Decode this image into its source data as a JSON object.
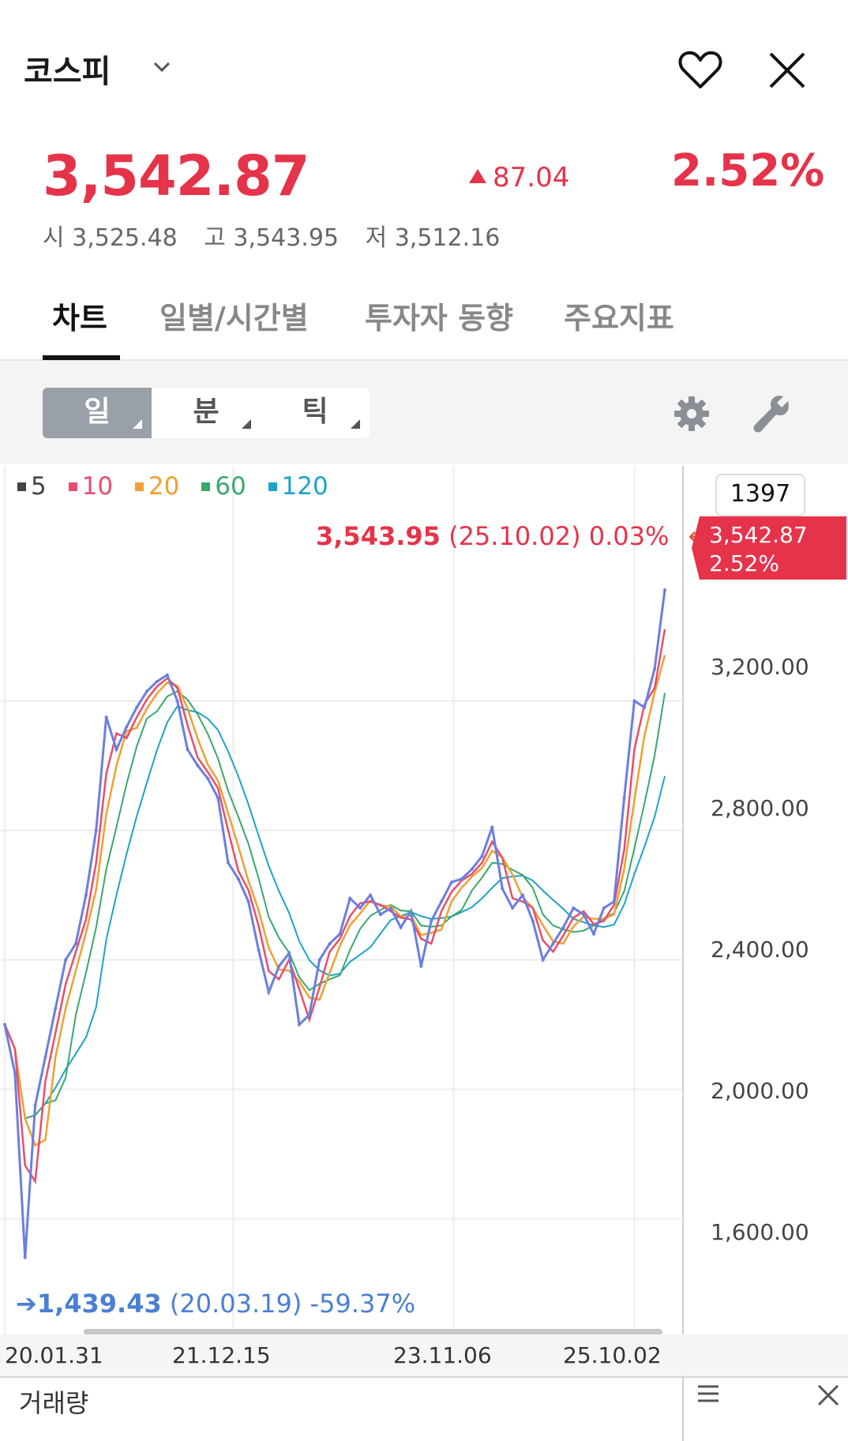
{
  "header": {
    "title": "코스피",
    "favorite_icon": "heart-icon",
    "close_icon": "close-icon",
    "dropdown_icon": "chevron-down-icon"
  },
  "quote": {
    "price": "3,542.87",
    "change": "87.04",
    "change_percent": "2.52%",
    "open": "시 3,525.48",
    "high": "고 3,543.95",
    "low": "저 3,512.16",
    "up_color": "#e5334a"
  },
  "tabs": [
    {
      "label": "차트",
      "active": true
    },
    {
      "label": "일별/시간별",
      "active": false
    },
    {
      "label": "투자자 동향",
      "active": false
    },
    {
      "label": "주요지표",
      "active": false
    }
  ],
  "period_selector": [
    {
      "label": "일",
      "active": true
    },
    {
      "label": "분",
      "active": false
    },
    {
      "label": "틱",
      "active": false
    }
  ],
  "toolbar_icons": [
    "gear-icon",
    "wrench-icon"
  ],
  "legend": [
    {
      "label": "5",
      "color": "#444444"
    },
    {
      "label": "10",
      "color": "#e84d6f"
    },
    {
      "label": "20",
      "color": "#f0a030"
    },
    {
      "label": "60",
      "color": "#3aa86a"
    },
    {
      "label": "120",
      "color": "#1ea3c9"
    }
  ],
  "annotations": {
    "high_value": "3,543.95",
    "high_detail": "(25.10.02) 0.03%",
    "low_value": "1,439.43",
    "low_detail": "(20.03.19) -59.37%"
  },
  "right_axis": {
    "volume_box": "1397",
    "current_price": "3,542.87",
    "current_pct": "2.52%"
  },
  "chart_data": {
    "type": "line",
    "yticks": [
      "3,200.00",
      "2,800.00",
      "2,400.00",
      "2,000.00",
      "1,600.00"
    ],
    "ytick_values": [
      3200,
      2800,
      2400,
      2000,
      1600
    ],
    "ylim": [
      1340,
      3780
    ],
    "x_tick_labels": [
      "20.01.31",
      "21.12.15",
      "23.11.06",
      "25.10.02"
    ],
    "x_tick_index": [
      0,
      22.5,
      44.2,
      62
    ],
    "x": [
      0,
      1,
      2,
      3,
      4,
      5,
      6,
      7,
      8,
      9,
      10,
      11,
      12,
      13,
      14,
      15,
      16,
      17,
      18,
      19,
      20,
      21,
      22,
      23,
      24,
      25,
      26,
      27,
      28,
      29,
      30,
      31,
      32,
      33,
      34,
      35,
      36,
      37,
      38,
      39,
      40,
      41,
      42,
      43,
      44,
      45,
      46,
      47,
      48,
      49,
      50,
      51,
      52,
      53,
      54,
      55,
      56,
      57,
      58,
      59,
      60,
      61,
      62,
      63,
      64,
      65
    ],
    "series": [
      {
        "name": "5",
        "color": "#6a7fe0",
        "values": [
          2200,
          2050,
          1480,
          1950,
          2100,
          2250,
          2400,
          2450,
          2600,
          2800,
          3150,
          3050,
          3120,
          3180,
          3230,
          3260,
          3280,
          3200,
          3050,
          3000,
          2960,
          2900,
          2700,
          2650,
          2580,
          2430,
          2300,
          2380,
          2420,
          2200,
          2230,
          2400,
          2450,
          2480,
          2590,
          2560,
          2600,
          2540,
          2560,
          2500,
          2550,
          2380,
          2520,
          2580,
          2640,
          2650,
          2680,
          2720,
          2810,
          2620,
          2560,
          2600,
          2520,
          2400,
          2450,
          2500,
          2560,
          2540,
          2480,
          2560,
          2580,
          2900,
          3200,
          3180,
          3300,
          3543
        ]
      }
    ]
  }
}
